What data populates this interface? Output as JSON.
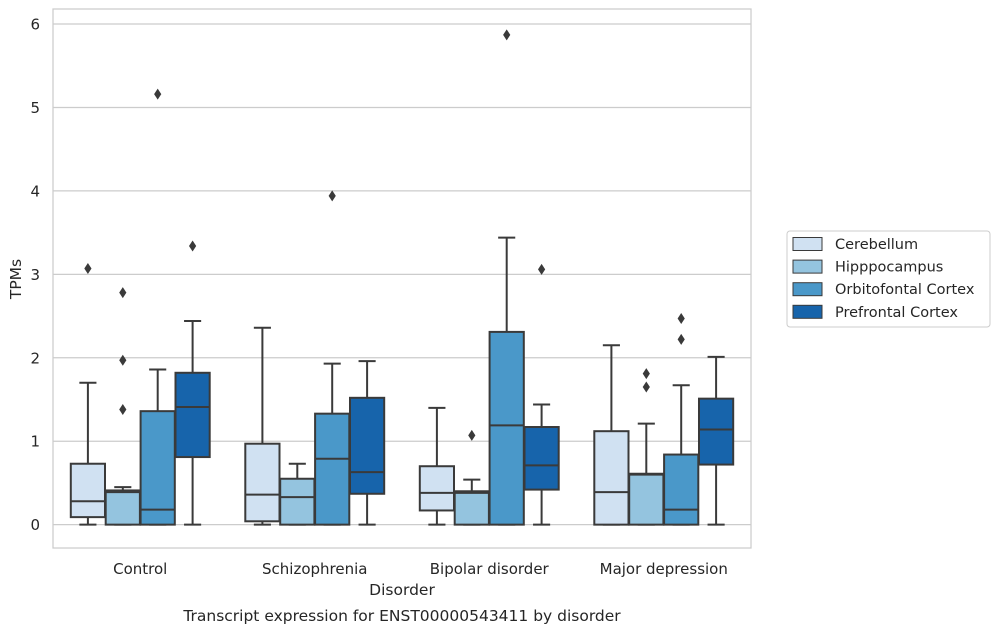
{
  "chart_data": {
    "type": "box",
    "title": "",
    "caption": "Transcript expression for ENST00000543411 by disorder",
    "xlabel": "Disorder",
    "ylabel": "TPMs",
    "ylim": [
      -0.28,
      6.18
    ],
    "yticks": [
      "0",
      "1",
      "2",
      "3",
      "4",
      "5",
      "6"
    ],
    "grid": "horizontal",
    "legend_position": "right",
    "categories": [
      "Control",
      "Schizophrenia",
      "Bipolar disorder",
      "Major depression"
    ],
    "series": [
      {
        "name": "Cerebellum",
        "color": "#d0e1f2",
        "boxes": [
          {
            "whisker_low": 0.0,
            "q1": 0.09,
            "median": 0.28,
            "q3": 0.73,
            "whisker_high": 1.7,
            "outliers": [
              3.07
            ]
          },
          {
            "whisker_low": 0.0,
            "q1": 0.04,
            "median": 0.36,
            "q3": 0.97,
            "whisker_high": 2.36,
            "outliers": []
          },
          {
            "whisker_low": 0.0,
            "q1": 0.17,
            "median": 0.38,
            "q3": 0.7,
            "whisker_high": 1.4,
            "outliers": []
          },
          {
            "whisker_low": 0.0,
            "q1": 0.0,
            "median": 0.39,
            "q3": 1.12,
            "whisker_high": 2.15,
            "outliers": []
          }
        ]
      },
      {
        "name": "Hipppocampus",
        "color": "#94c4df",
        "boxes": [
          {
            "whisker_low": 0.0,
            "q1": 0.0,
            "median": 0.39,
            "q3": 0.41,
            "whisker_high": 0.45,
            "outliers": [
              2.78,
              1.97,
              1.38
            ]
          },
          {
            "whisker_low": 0.0,
            "q1": 0.0,
            "median": 0.33,
            "q3": 0.55,
            "whisker_high": 0.73,
            "outliers": []
          },
          {
            "whisker_low": 0.0,
            "q1": 0.0,
            "median": 0.38,
            "q3": 0.4,
            "whisker_high": 0.54,
            "outliers": [
              1.07
            ]
          },
          {
            "whisker_low": 0.0,
            "q1": 0.0,
            "median": 0.6,
            "q3": 0.61,
            "whisker_high": 1.21,
            "outliers": [
              1.81,
              1.65
            ]
          }
        ]
      },
      {
        "name": "Orbitofontal Cortex",
        "color": "#4a98c9",
        "boxes": [
          {
            "whisker_low": 0.0,
            "q1": 0.0,
            "median": 0.18,
            "q3": 1.36,
            "whisker_high": 1.86,
            "outliers": [
              5.16
            ]
          },
          {
            "whisker_low": 0.0,
            "q1": 0.0,
            "median": 0.79,
            "q3": 1.33,
            "whisker_high": 1.93,
            "outliers": [
              3.94
            ]
          },
          {
            "whisker_low": 0.0,
            "q1": 0.0,
            "median": 1.19,
            "q3": 2.31,
            "whisker_high": 3.44,
            "outliers": [
              5.87
            ]
          },
          {
            "whisker_low": 0.0,
            "q1": 0.0,
            "median": 0.18,
            "q3": 0.84,
            "whisker_high": 1.67,
            "outliers": [
              2.47,
              2.22
            ]
          }
        ]
      },
      {
        "name": "Prefrontal Cortex",
        "color": "#1764ab",
        "boxes": [
          {
            "whisker_low": 0.0,
            "q1": 0.81,
            "median": 1.41,
            "q3": 1.82,
            "whisker_high": 2.44,
            "outliers": [
              3.34
            ]
          },
          {
            "whisker_low": 0.0,
            "q1": 0.37,
            "median": 0.63,
            "q3": 1.52,
            "whisker_high": 1.96,
            "outliers": []
          },
          {
            "whisker_low": 0.0,
            "q1": 0.42,
            "median": 0.71,
            "q3": 1.17,
            "whisker_high": 1.44,
            "outliers": [
              3.06
            ]
          },
          {
            "whisker_low": 0.0,
            "q1": 0.72,
            "median": 1.14,
            "q3": 1.51,
            "whisker_high": 2.01,
            "outliers": []
          }
        ]
      }
    ]
  }
}
